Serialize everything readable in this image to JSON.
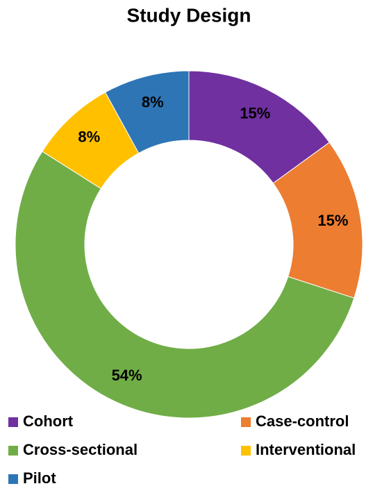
{
  "chart_data": {
    "type": "donut",
    "title": "Study Design",
    "categories": [
      "Cohort",
      "Case-control",
      "Cross-sectional",
      "Interventional",
      "Pilot"
    ],
    "values": [
      15,
      15,
      54,
      8,
      8
    ],
    "value_labels": [
      "15%",
      "15%",
      "54%",
      "8%",
      "8%"
    ],
    "colors": [
      "#7030a0",
      "#ed7d31",
      "#70ad47",
      "#ffc000",
      "#2e75b6"
    ],
    "legend": "bottom"
  }
}
